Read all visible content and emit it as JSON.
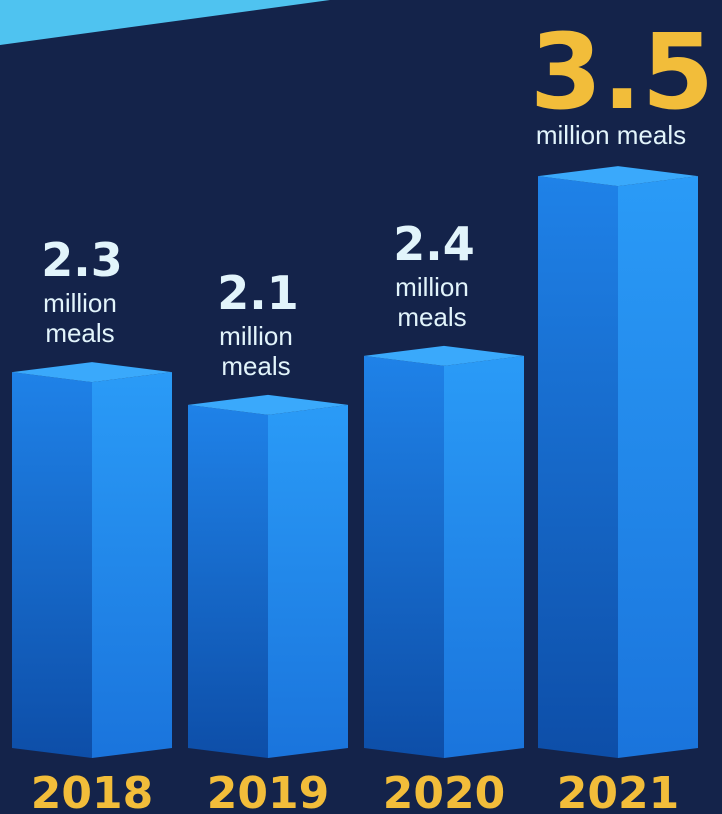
{
  "chart_data": {
    "type": "bar",
    "title": "",
    "xlabel": "",
    "ylabel": "",
    "categories": [
      "2018",
      "2019",
      "2020",
      "2021"
    ],
    "values": [
      2.3,
      2.1,
      2.4,
      3.5
    ],
    "unit_label": "million meals",
    "value_labels": [
      "2.3",
      "2.1",
      "2.4",
      "3.5"
    ],
    "unit_lines": [
      [
        "million",
        "meals"
      ],
      [
        "million",
        "meals"
      ],
      [
        "million",
        "meals"
      ],
      [
        "million meals"
      ]
    ],
    "highlight_index": 3,
    "style": "3d-box"
  },
  "colors": {
    "background": "#14234a",
    "banner": "#4fc3f0",
    "bar_front_top": "#1f82e8",
    "bar_front_bottom": "#0d4ea8",
    "bar_side": "#2a9bf7",
    "bar_top": "#3aa9fb",
    "label_light": "#e2f4fb",
    "highlight": "#f2bd3a"
  }
}
